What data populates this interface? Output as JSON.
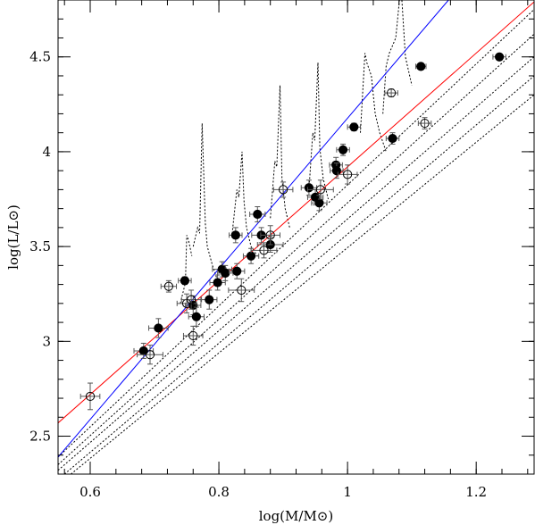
{
  "chart_data": {
    "type": "scatter",
    "title": "",
    "xlabel": "log(M/M⊙)",
    "ylabel": "log(L/L⊙)",
    "xlim": [
      0.55,
      1.29
    ],
    "ylim": [
      2.3,
      4.8
    ],
    "xticks": [
      "0.6",
      "0.8",
      "1",
      "1.2"
    ],
    "xtick_values": [
      0.6,
      0.8,
      1.0,
      1.2
    ],
    "yticks": [
      "2.5",
      "3",
      "3.5",
      "4",
      "4.5"
    ],
    "ytick_values": [
      2.5,
      3.0,
      3.5,
      4.0,
      4.5
    ],
    "grid": false,
    "series": [
      {
        "marker": "filled-circle",
        "color": "#000000",
        "points": [
          {
            "x": 0.683,
            "y": 2.95,
            "xerr": 0.015,
            "yerr": 0.04
          },
          {
            "x": 0.706,
            "y": 3.07,
            "xerr": 0.015,
            "yerr": 0.05
          },
          {
            "x": 0.747,
            "y": 3.32,
            "xerr": 0.01,
            "yerr": 0.02
          },
          {
            "x": 0.76,
            "y": 3.19,
            "xerr": 0.012,
            "yerr": 0.05
          },
          {
            "x": 0.765,
            "y": 3.13,
            "xerr": 0.012,
            "yerr": 0.05
          },
          {
            "x": 0.785,
            "y": 3.22,
            "xerr": 0.012,
            "yerr": 0.05
          },
          {
            "x": 0.798,
            "y": 3.31,
            "xerr": 0.012,
            "yerr": 0.04
          },
          {
            "x": 0.805,
            "y": 3.38,
            "xerr": 0.015,
            "yerr": 0.04
          },
          {
            "x": 0.81,
            "y": 3.36,
            "xerr": 0.012,
            "yerr": 0.04
          },
          {
            "x": 0.828,
            "y": 3.37,
            "xerr": 0.012,
            "yerr": 0.04
          },
          {
            "x": 0.826,
            "y": 3.56,
            "xerr": 0.01,
            "yerr": 0.04
          },
          {
            "x": 0.85,
            "y": 3.45,
            "xerr": 0.012,
            "yerr": 0.04
          },
          {
            "x": 0.86,
            "y": 3.67,
            "xerr": 0.012,
            "yerr": 0.04
          },
          {
            "x": 0.866,
            "y": 3.56,
            "xerr": 0.015,
            "yerr": 0.04
          },
          {
            "x": 0.88,
            "y": 3.51,
            "xerr": 0.02,
            "yerr": 0.04
          },
          {
            "x": 0.94,
            "y": 3.81,
            "xerr": 0.012,
            "yerr": 0.04
          },
          {
            "x": 0.95,
            "y": 3.76,
            "xerr": 0.012,
            "yerr": 0.04
          },
          {
            "x": 0.956,
            "y": 3.73,
            "xerr": 0.012,
            "yerr": 0.04
          },
          {
            "x": 0.982,
            "y": 3.93,
            "xerr": 0.01,
            "yerr": 0.04
          },
          {
            "x": 0.983,
            "y": 3.9,
            "xerr": 0.01,
            "yerr": 0.04
          },
          {
            "x": 0.993,
            "y": 4.01,
            "xerr": 0.01,
            "yerr": 0.03
          },
          {
            "x": 1.01,
            "y": 4.13,
            "xerr": 0.01,
            "yerr": 0.02
          },
          {
            "x": 1.07,
            "y": 4.07,
            "xerr": 0.01,
            "yerr": 0.03
          },
          {
            "x": 1.114,
            "y": 4.45,
            "xerr": 0.008,
            "yerr": 0.01
          },
          {
            "x": 1.236,
            "y": 4.5,
            "xerr": 0.01,
            "yerr": 0.015
          }
        ]
      },
      {
        "marker": "open-circle",
        "color": "#000000",
        "points": [
          {
            "x": 0.6,
            "y": 2.71,
            "xerr": 0.015,
            "yerr": 0.07
          },
          {
            "x": 0.693,
            "y": 2.93,
            "xerr": 0.02,
            "yerr": 0.05
          },
          {
            "x": 0.722,
            "y": 3.29,
            "xerr": 0.012,
            "yerr": 0.03
          },
          {
            "x": 0.75,
            "y": 3.2,
            "xerr": 0.015,
            "yerr": 0.05
          },
          {
            "x": 0.757,
            "y": 3.22,
            "xerr": 0.015,
            "yerr": 0.05
          },
          {
            "x": 0.76,
            "y": 3.03,
            "xerr": 0.015,
            "yerr": 0.05
          },
          {
            "x": 0.835,
            "y": 3.27,
            "xerr": 0.02,
            "yerr": 0.06
          },
          {
            "x": 0.87,
            "y": 3.48,
            "xerr": 0.02,
            "yerr": 0.04
          },
          {
            "x": 0.88,
            "y": 3.56,
            "xerr": 0.015,
            "yerr": 0.05
          },
          {
            "x": 0.9,
            "y": 3.8,
            "xerr": 0.015,
            "yerr": 0.04
          },
          {
            "x": 0.958,
            "y": 3.8,
            "xerr": 0.02,
            "yerr": 0.05
          },
          {
            "x": 1.0,
            "y": 3.88,
            "xerr": 0.015,
            "yerr": 0.05
          },
          {
            "x": 1.068,
            "y": 4.31,
            "xerr": 0.01,
            "yerr": 0.02
          },
          {
            "x": 1.12,
            "y": 4.15,
            "xerr": 0.01,
            "yerr": 0.03
          }
        ]
      }
    ],
    "lines": [
      {
        "name": "",
        "color": "#ff0000",
        "x": [
          0.55,
          1.29
        ],
        "y": [
          2.57,
          4.79
        ]
      },
      {
        "name": "",
        "color": "#0000ff",
        "x": [
          0.55,
          1.157
        ],
        "y": [
          2.39,
          4.8
        ]
      }
    ],
    "dotted_tracks": [
      {
        "color": "#000000",
        "x": [
          0.55,
          1.29
        ],
        "y": [
          2.39,
          4.75
        ]
      },
      {
        "color": "#000000",
        "x": [
          0.55,
          1.29
        ],
        "y": [
          2.35,
          4.62
        ]
      },
      {
        "color": "#000000",
        "x": [
          0.55,
          1.29
        ],
        "y": [
          2.32,
          4.5
        ]
      },
      {
        "color": "#000000",
        "x": [
          0.56,
          1.29
        ],
        "y": [
          2.3,
          4.4
        ]
      },
      {
        "color": "#000000",
        "x": [
          0.57,
          1.29
        ],
        "y": [
          2.3,
          4.3
        ]
      }
    ],
    "dotted_loops": [
      {
        "color": "#000000",
        "x": [
          0.74,
          0.748,
          0.75,
          0.753,
          0.758
        ],
        "y": [
          3.2,
          3.31,
          3.56,
          3.53,
          3.45
        ]
      },
      {
        "color": "#000000",
        "x": [
          0.76,
          0.767,
          0.77,
          0.774,
          0.779,
          0.782,
          0.786,
          0.79,
          0.795,
          0.8
        ],
        "y": [
          3.5,
          3.6,
          3.57,
          4.15,
          3.62,
          3.5,
          3.45,
          3.4,
          3.35,
          3.3
        ]
      },
      {
        "color": "#000000",
        "x": [
          0.82,
          0.828,
          0.831,
          0.836,
          0.839,
          0.843,
          0.85,
          0.86
        ],
        "y": [
          3.55,
          3.8,
          3.76,
          4.0,
          3.74,
          3.6,
          3.5,
          3.45
        ]
      },
      {
        "color": "#000000",
        "x": [
          0.88,
          0.887,
          0.89,
          0.895,
          0.898,
          0.903,
          0.91
        ],
        "y": [
          3.65,
          3.95,
          3.92,
          4.35,
          3.86,
          3.7,
          3.6
        ]
      },
      {
        "color": "#000000",
        "x": [
          0.94,
          0.946,
          0.949,
          0.954,
          0.957,
          0.962,
          0.97
        ],
        "y": [
          3.8,
          4.1,
          4.06,
          4.47,
          4.02,
          3.86,
          3.75
        ]
      },
      {
        "color": "#000000",
        "x": [
          1.02,
          1.027,
          1.03,
          1.037,
          1.043,
          1.05,
          1.06
        ],
        "y": [
          4.1,
          4.52,
          4.47,
          4.4,
          4.2,
          4.1,
          4.0
        ]
      },
      {
        "color": "#000000",
        "x": [
          1.055,
          1.06,
          1.065,
          1.075,
          1.083,
          1.09,
          1.1
        ],
        "y": [
          4.2,
          4.45,
          4.52,
          4.6,
          4.88,
          4.5,
          4.35
        ]
      }
    ]
  }
}
